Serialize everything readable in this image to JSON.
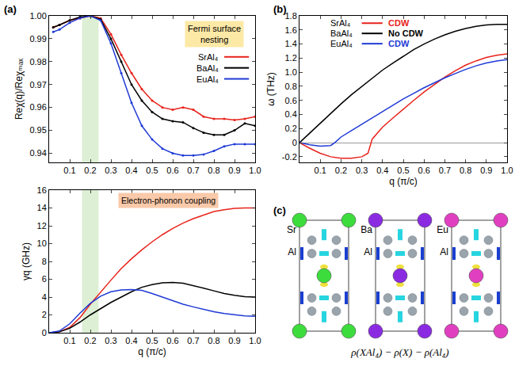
{
  "chart_data": [
    {
      "panel": "(a)",
      "type": "line",
      "y_label": "Reχ(q)/Reχₘₐₓ",
      "xlim": [
        0,
        1
      ],
      "xticks": [
        0.1,
        0.2,
        0.3,
        0.4,
        0.5,
        0.6,
        0.7,
        0.8,
        0.9,
        {
          "value": 1,
          "label": "1.0"
        }
      ],
      "ylim": [
        0.936,
        1
      ],
      "yticks": [
        0.94,
        0.95,
        0.96,
        0.97,
        0.98,
        0.99,
        {
          "value": 1,
          "label": "1.00"
        }
      ],
      "grid": false,
      "legend": "top right",
      "marker": "circle",
      "highlight_band": [
        0.16,
        0.24
      ],
      "annotations": [
        {
          "text": "Fermi surface nesting",
          "color": "#fde9a6"
        }
      ],
      "series": [
        {
          "name": "SrAl₄",
          "color": "#e8231c",
          "x": [
            0.02,
            0.05,
            0.1,
            0.15,
            0.2,
            0.25,
            0.3,
            0.35,
            0.4,
            0.45,
            0.5,
            0.55,
            0.6,
            0.65,
            0.7,
            0.75,
            0.8,
            0.85,
            0.9,
            0.95,
            1.0
          ],
          "values": [
            0.995,
            0.996,
            0.998,
            0.999,
            1.0,
            0.999,
            0.992,
            0.983,
            0.975,
            0.968,
            0.963,
            0.96,
            0.959,
            0.96,
            0.959,
            0.956,
            0.955,
            0.955,
            0.9545,
            0.955,
            0.956
          ]
        },
        {
          "name": "BaAl₄",
          "color": "#000000",
          "x": [
            0.02,
            0.05,
            0.1,
            0.15,
            0.2,
            0.25,
            0.3,
            0.35,
            0.4,
            0.45,
            0.5,
            0.55,
            0.6,
            0.65,
            0.7,
            0.75,
            0.8,
            0.85,
            0.9,
            0.95,
            1.0
          ],
          "values": [
            0.995,
            0.996,
            0.998,
            0.9995,
            1.0,
            0.9985,
            0.99,
            0.98,
            0.97,
            0.963,
            0.958,
            0.955,
            0.954,
            0.9535,
            0.951,
            0.949,
            0.948,
            0.948,
            0.95,
            0.953,
            0.952
          ]
        },
        {
          "name": "EuAl₄",
          "color": "#1f3ad6",
          "x": [
            0.02,
            0.05,
            0.1,
            0.15,
            0.2,
            0.25,
            0.3,
            0.35,
            0.4,
            0.45,
            0.5,
            0.55,
            0.6,
            0.65,
            0.7,
            0.75,
            0.8,
            0.85,
            0.9,
            0.95,
            1.0
          ],
          "values": [
            0.993,
            0.994,
            0.997,
            0.999,
            1.0,
            0.998,
            0.988,
            0.975,
            0.962,
            0.952,
            0.946,
            0.942,
            0.94,
            0.939,
            0.939,
            0.9395,
            0.941,
            0.943,
            0.944,
            0.944,
            0.944
          ]
        }
      ]
    },
    {
      "type": "line",
      "x_label": "q (π/c)",
      "y_label": "γq (GHz)",
      "xlim": [
        0,
        1
      ],
      "xticks": [
        0.1,
        0.2,
        0.3,
        0.4,
        0.5,
        0.6,
        0.7,
        0.8,
        0.9,
        {
          "value": 1,
          "label": "1.0"
        }
      ],
      "ylim": [
        0,
        16
      ],
      "yticks": [
        0,
        2,
        4,
        6,
        8,
        10,
        12,
        14,
        16
      ],
      "grid": false,
      "highlight_band": [
        0.16,
        0.24
      ],
      "annotations": [
        {
          "text": "Electron-phonon coupling",
          "color": "#f9c9a9"
        }
      ],
      "series": [
        {
          "name": "SrAl₄",
          "color": "#e8231c",
          "x": [
            0,
            0.05,
            0.1,
            0.15,
            0.2,
            0.25,
            0.3,
            0.35,
            0.4,
            0.45,
            0.5,
            0.55,
            0.6,
            0.65,
            0.7,
            0.75,
            0.8,
            0.85,
            0.9,
            0.95,
            1.0
          ],
          "values": [
            0,
            0.1,
            0.6,
            1.7,
            3.2,
            4.6,
            5.9,
            7.2,
            8.3,
            9.3,
            10.2,
            11.0,
            11.7,
            12.3,
            12.8,
            13.2,
            13.6,
            13.8,
            13.95,
            14.0,
            14.0
          ]
        },
        {
          "name": "BaAl₄",
          "color": "#000000",
          "x": [
            0,
            0.05,
            0.1,
            0.15,
            0.2,
            0.25,
            0.3,
            0.35,
            0.4,
            0.45,
            0.5,
            0.55,
            0.6,
            0.65,
            0.7,
            0.75,
            0.8,
            0.85,
            0.9,
            0.95,
            1.0
          ],
          "values": [
            0,
            0.1,
            0.5,
            1.2,
            2.0,
            2.7,
            3.4,
            4.0,
            4.6,
            5.1,
            5.4,
            5.6,
            5.65,
            5.55,
            5.3,
            5.0,
            4.7,
            4.4,
            4.2,
            4.05,
            4.0
          ]
        },
        {
          "name": "EuAl₄",
          "color": "#1f3ad6",
          "x": [
            0,
            0.05,
            0.1,
            0.15,
            0.2,
            0.25,
            0.3,
            0.35,
            0.4,
            0.45,
            0.5,
            0.55,
            0.6,
            0.65,
            0.7,
            0.75,
            0.8,
            0.85,
            0.9,
            0.95,
            1.0
          ],
          "values": [
            0,
            0.2,
            1.0,
            2.2,
            3.3,
            4.1,
            4.6,
            4.8,
            4.85,
            4.75,
            4.4,
            4.0,
            3.6,
            3.2,
            2.9,
            2.6,
            2.35,
            2.15,
            2.0,
            1.9,
            1.85
          ]
        }
      ]
    },
    {
      "panel": "(b)",
      "type": "line",
      "x_label": "q (π/c)",
      "y_label": "ω (THz)",
      "xlim": [
        0,
        1
      ],
      "xticks": [
        0.1,
        0.2,
        0.3,
        0.4,
        0.5,
        0.6,
        0.7,
        0.8,
        0.9,
        {
          "value": 1,
          "label": "1.0"
        }
      ],
      "ylim": [
        -0.28,
        1.8
      ],
      "yticks": [
        -0.2,
        0,
        0.2,
        0.4,
        0.6,
        0.8,
        {
          "value": 1,
          "label": "1.0"
        },
        1.2,
        1.4,
        1.6,
        1.8
      ],
      "grid": false,
      "legend": "top",
      "series": [
        {
          "name": "SrAl₄",
          "color": "#e8231c",
          "note": "CDW",
          "x": [
            0,
            0.05,
            0.1,
            0.15,
            0.2,
            0.25,
            0.3,
            0.33,
            0.35,
            0.4,
            0.45,
            0.5,
            0.55,
            0.6,
            0.65,
            0.7,
            0.75,
            0.8,
            0.85,
            0.9,
            0.95,
            1.0
          ],
          "values": [
            0,
            -0.08,
            -0.15,
            -0.2,
            -0.22,
            -0.22,
            -0.2,
            -0.15,
            0.05,
            0.22,
            0.35,
            0.48,
            0.6,
            0.72,
            0.83,
            0.93,
            1.02,
            1.1,
            1.16,
            1.21,
            1.24,
            1.26
          ]
        },
        {
          "name": "BaAl₄",
          "color": "#000000",
          "note": "No CDW",
          "x": [
            0,
            0.05,
            0.1,
            0.15,
            0.2,
            0.25,
            0.3,
            0.35,
            0.4,
            0.45,
            0.5,
            0.55,
            0.6,
            0.65,
            0.7,
            0.75,
            0.8,
            0.85,
            0.9,
            0.95,
            1.0
          ],
          "values": [
            0,
            0.14,
            0.28,
            0.42,
            0.55,
            0.68,
            0.8,
            0.92,
            1.03,
            1.13,
            1.23,
            1.32,
            1.4,
            1.47,
            1.53,
            1.58,
            1.62,
            1.65,
            1.67,
            1.68,
            1.68
          ]
        },
        {
          "name": "EuAl₄",
          "color": "#1f3ad6",
          "note": "CDW",
          "x": [
            0,
            0.05,
            0.1,
            0.15,
            0.17,
            0.2,
            0.25,
            0.3,
            0.35,
            0.4,
            0.45,
            0.5,
            0.55,
            0.6,
            0.65,
            0.7,
            0.75,
            0.8,
            0.85,
            0.9,
            0.95,
            1.0
          ],
          "values": [
            0,
            -0.03,
            -0.05,
            -0.04,
            0.0,
            0.08,
            0.17,
            0.26,
            0.35,
            0.44,
            0.53,
            0.62,
            0.7,
            0.78,
            0.85,
            0.92,
            0.98,
            1.04,
            1.09,
            1.13,
            1.16,
            1.18
          ]
        }
      ]
    }
  ],
  "structure_panel": {
    "panel": "(c)",
    "cells": [
      {
        "labels": [
          "Sr",
          "Al"
        ],
        "color": "#3ddc3d"
      },
      {
        "labels": [
          "Ba",
          "Al"
        ],
        "color": "#8a2be2"
      },
      {
        "labels": [
          "Eu",
          "Al"
        ],
        "color": "#e040c0"
      }
    ],
    "caption": "ρ(XAl₄) − ρ(X) − ρ(Al₄)"
  }
}
